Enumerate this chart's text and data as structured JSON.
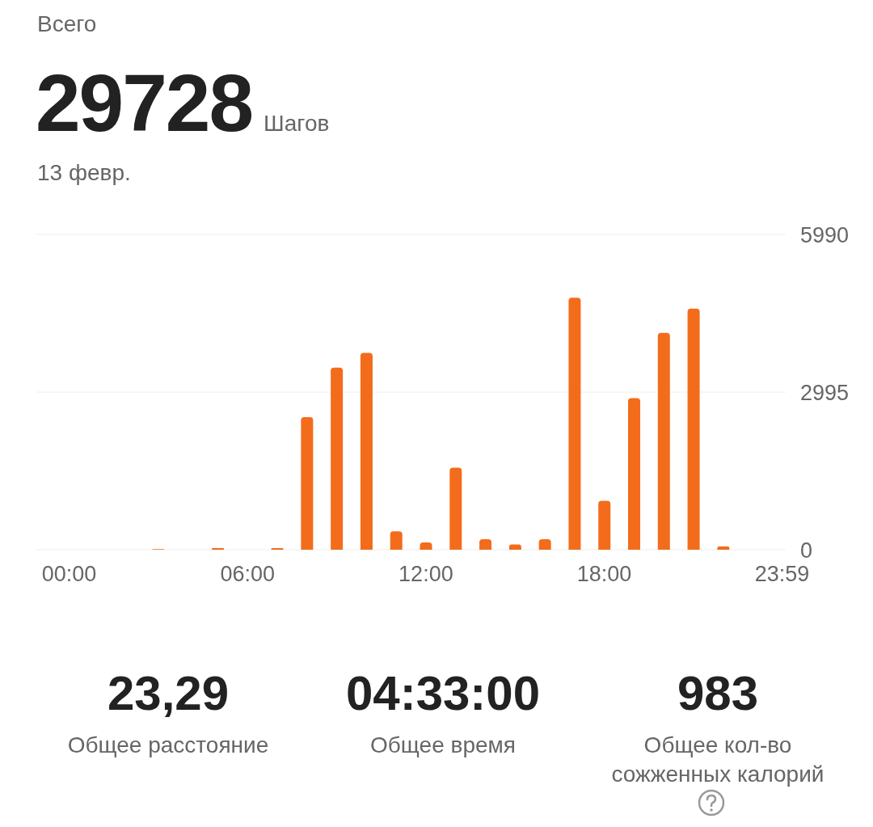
{
  "chart_data": {
    "type": "bar",
    "title": "Всего",
    "annotations": [
      "29728",
      "Шагов",
      "13 февр.",
      "23,29",
      "Общее расстояние",
      "04:33:00",
      "Общее время",
      "983",
      "Общее кол-во сожженных калорий"
    ],
    "x": [
      0,
      1,
      2,
      3,
      4,
      5,
      6,
      7,
      8,
      9,
      10,
      11,
      12,
      13,
      14,
      15,
      16,
      17,
      18,
      19,
      20,
      21,
      22,
      23
    ],
    "values": [
      0,
      0,
      0,
      10,
      0,
      30,
      0,
      30,
      2520,
      3460,
      3740,
      350,
      140,
      1560,
      200,
      100,
      200,
      4790,
      930,
      2880,
      4120,
      4580,
      60,
      0
    ],
    "color": "#f36c1c",
    "xlim": [
      -1.1,
      24.1
    ],
    "xticks": [
      {
        "value": 0,
        "label": "00:00"
      },
      {
        "value": 6,
        "label": "06:00"
      },
      {
        "value": 12,
        "label": "12:00"
      },
      {
        "value": 18,
        "label": "18:00"
      },
      {
        "value": 23.98,
        "label": "23:59"
      }
    ],
    "ylim": [
      0,
      5990
    ],
    "yticks": [
      0,
      2995,
      5990
    ],
    "grid": "y"
  }
}
